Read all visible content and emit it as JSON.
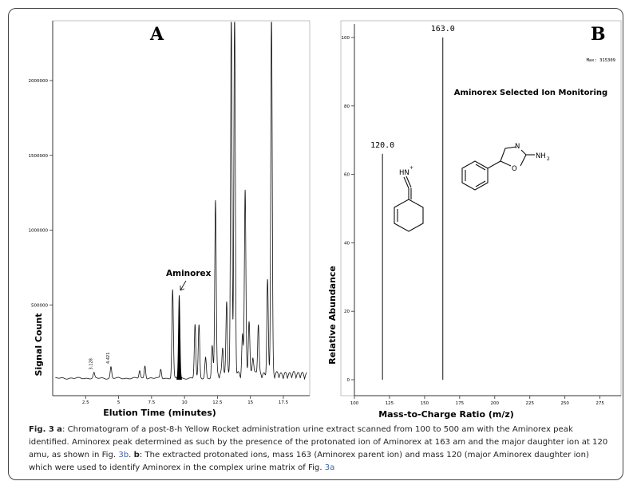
{
  "colors": {
    "link": "#3a63a8",
    "trace": "#111111",
    "axis": "#333333"
  },
  "chart_data": [
    {
      "type": "line",
      "panel_label": "A",
      "xlabel": "Elution Time (minutes)",
      "ylabel": "Signal Count",
      "xlim": [
        0,
        19.5
      ],
      "ylim": [
        0,
        2400000
      ],
      "x_ticks": [
        2.5,
        5,
        7.5,
        10,
        12.5,
        15,
        17.5
      ],
      "x_tick_labels": [
        "2.5",
        "5",
        "7.5",
        "10",
        "12.5",
        "15",
        "17.5"
      ],
      "y_ticks": [
        500000,
        1000000,
        1500000,
        2000000
      ],
      "y_tick_labels": [
        "500000",
        "1000000",
        "1500000",
        "2000000"
      ],
      "peaks": [
        {
          "rt": 3.13,
          "height": 35000,
          "label": "3.128"
        },
        {
          "rt": 4.42,
          "height": 75000,
          "label": "4.421"
        },
        {
          "rt": 6.6,
          "height": 50000
        },
        {
          "rt": 7.0,
          "height": 85000
        },
        {
          "rt": 8.2,
          "height": 60000
        },
        {
          "rt": 9.1,
          "height": 590000
        },
        {
          "rt": 9.6,
          "height": 555000,
          "filled": true
        },
        {
          "rt": 10.8,
          "height": 360000
        },
        {
          "rt": 11.1,
          "height": 355000
        },
        {
          "rt": 11.6,
          "height": 140000
        },
        {
          "rt": 12.1,
          "height": 180000
        },
        {
          "rt": 12.35,
          "height": 1170000
        },
        {
          "rt": 12.9,
          "height": 180000
        },
        {
          "rt": 13.2,
          "height": 490000
        },
        {
          "rt": 13.55,
          "height": 2400000
        },
        {
          "rt": 13.8,
          "height": 2400000
        },
        {
          "rt": 14.4,
          "height": 260000
        },
        {
          "rt": 14.6,
          "height": 1250000
        },
        {
          "rt": 14.9,
          "height": 380000
        },
        {
          "rt": 15.2,
          "height": 120000
        },
        {
          "rt": 15.6,
          "height": 340000
        },
        {
          "rt": 16.3,
          "height": 630000
        },
        {
          "rt": 16.6,
          "height": 2400000
        }
      ],
      "annotations": [
        {
          "text": "Aminorex",
          "rt": 9.6
        }
      ]
    },
    {
      "type": "bar",
      "panel_label": "B",
      "title": "Aminorex Selected Ion Monitoring",
      "max_label": "Max: 315309",
      "xlabel": "Mass-to-Charge Ratio (m/z)",
      "ylabel": "Relative Abundance",
      "xlim": [
        100,
        290
      ],
      "ylim": [
        0,
        102
      ],
      "x_ticks": [
        100,
        125,
        150,
        175,
        200,
        225,
        250,
        275
      ],
      "x_tick_labels": [
        "100",
        "125",
        "150",
        "175",
        "200",
        "225",
        "250",
        "275"
      ],
      "y_ticks": [
        0,
        20,
        40,
        60,
        80,
        100
      ],
      "y_tick_labels": [
        "0",
        "20",
        "40",
        "60",
        "80",
        "100"
      ],
      "bars": [
        {
          "mz": 120,
          "abundance": 66,
          "label": "120.0"
        },
        {
          "mz": 163,
          "abundance": 100,
          "label": "163.0"
        }
      ],
      "structure_labels": {
        "iminium": "HN",
        "plus": "+",
        "ring_n": "N",
        "ring_o": "O",
        "amine": "NH",
        "sub2": "2"
      }
    }
  ],
  "caption": {
    "fig_label": "Fig. 3",
    "a_label": "a",
    "text_1": ": Chromatogram of a post-8-h Yellow Rocket administration urine extract scanned from 100 to 500 am with the Aminorex peak identified.",
    "text_2": "Aminorex peak determined as such by the presence of the protonated ion of Aminorex at 163 am and the major daughter ion at 120 amu, as",
    "text_3a": "shown in Fig. ",
    "link_1": "3b",
    "text_3b": ". ",
    "b_label": "b",
    "text_3c": ": The extracted protonated ions, mass 163 (Aminorex parent ion) and mass 120 (major Aminorex daughter ion) which were",
    "text_4a": "used to identify Aminorex in the complex urine matrix of Fig. ",
    "link_2": "3a"
  }
}
